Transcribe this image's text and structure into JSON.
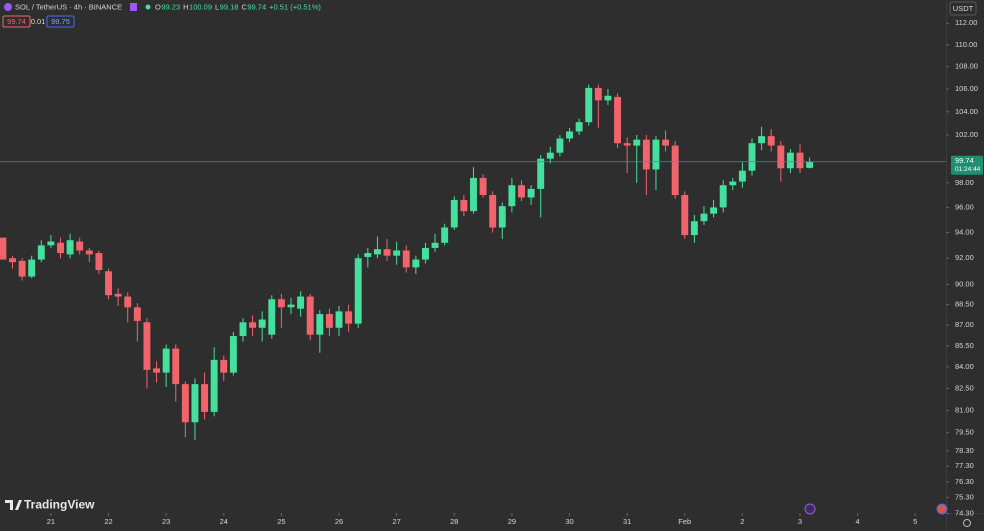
{
  "chart_data": {
    "type": "candlestick",
    "header": {
      "symbol": "SOL / TetherUS · 4h · BINANCE",
      "ohlc": [
        {
          "key": "O",
          "value": "99.23"
        },
        {
          "key": "H",
          "value": "100.09"
        },
        {
          "key": "L",
          "value": "99.18"
        },
        {
          "key": "C",
          "value": "99.74"
        }
      ],
      "change": "+0.51 (+0.51%)",
      "bid": "99.74",
      "spread": "0.01",
      "ask": "99.75"
    },
    "currency": "USDT",
    "logo": "TradingView",
    "last_price": {
      "value": 99.74,
      "label": "99.74"
    },
    "countdown": "01:24:44",
    "open": [
      93.6,
      92.0,
      91.8,
      90.6,
      91.9,
      93.0,
      93.2,
      92.3,
      93.3,
      92.6,
      92.4,
      91.0,
      89.3,
      89.1,
      88.3,
      87.2,
      83.9,
      83.6,
      85.3,
      82.8,
      80.2,
      82.8,
      80.9,
      84.5,
      83.6,
      86.2,
      87.2,
      86.8,
      86.3,
      88.9,
      88.3,
      88.2,
      89.1,
      86.3,
      87.8,
      86.8,
      88.0,
      87.1,
      92.1,
      92.3,
      92.7,
      92.2,
      92.6,
      91.3,
      91.9,
      92.8,
      93.2,
      94.4,
      96.6,
      95.7,
      98.4,
      97.0,
      94.4,
      96.1,
      97.8,
      96.8,
      97.5,
      100.0,
      100.5,
      101.7,
      102.3,
      103.1,
      106.1,
      105.0,
      105.3,
      101.3,
      101.1,
      101.6,
      99.1,
      101.6,
      101.1,
      97.0,
      93.8,
      94.9,
      95.5,
      96.0,
      97.8,
      98.1,
      99.0,
      101.3,
      101.9,
      101.1,
      99.2,
      100.5,
      99.23
    ],
    "high": [
      93.6,
      92.2,
      92.0,
      92.2,
      93.4,
      93.8,
      93.6,
      93.9,
      93.6,
      92.8,
      92.6,
      91.2,
      89.7,
      89.4,
      88.6,
      87.5,
      84.4,
      85.6,
      85.6,
      83.0,
      83.2,
      83.6,
      85.4,
      84.8,
      86.5,
      87.5,
      87.7,
      88.0,
      89.2,
      89.3,
      89.0,
      89.5,
      89.3,
      88.1,
      88.2,
      88.4,
      88.5,
      92.3,
      92.8,
      93.7,
      93.5,
      93.3,
      93.0,
      92.2,
      93.2,
      93.9,
      94.7,
      96.9,
      97.0,
      99.3,
      98.7,
      97.3,
      96.4,
      98.4,
      98.2,
      97.8,
      100.3,
      101.0,
      102.0,
      102.6,
      103.4,
      106.4,
      106.4,
      106.0,
      105.6,
      101.8,
      102.0,
      102.0,
      101.9,
      102.4,
      101.5,
      97.3,
      95.4,
      96.1,
      96.6,
      98.2,
      98.4,
      99.7,
      101.7,
      102.7,
      102.5,
      101.5,
      100.8,
      101.2,
      100.09
    ],
    "low": [
      92.0,
      91.2,
      90.3,
      90.5,
      91.7,
      92.8,
      92.0,
      92.0,
      92.3,
      91.7,
      90.8,
      88.9,
      88.4,
      87.2,
      85.8,
      82.5,
      82.9,
      82.6,
      81.6,
      79.2,
      79.0,
      80.4,
      80.6,
      83.0,
      83.4,
      85.8,
      86.2,
      85.8,
      86.0,
      86.8,
      87.8,
      87.6,
      85.9,
      85.0,
      86.2,
      86.2,
      86.5,
      86.8,
      91.3,
      92.0,
      91.8,
      91.5,
      90.9,
      90.8,
      91.6,
      92.5,
      93.0,
      94.2,
      95.3,
      95.5,
      96.8,
      94.0,
      93.5,
      95.6,
      96.5,
      96.2,
      95.2,
      99.6,
      100.2,
      101.4,
      102.0,
      102.8,
      102.6,
      104.6,
      100.9,
      98.8,
      98.0,
      97.0,
      97.4,
      100.6,
      96.7,
      93.5,
      93.2,
      94.6,
      95.2,
      95.6,
      97.4,
      97.6,
      98.6,
      100.7,
      100.6,
      98.1,
      98.8,
      98.8,
      99.18
    ],
    "close": [
      91.9,
      91.7,
      90.6,
      91.9,
      93.0,
      93.3,
      92.4,
      93.4,
      92.6,
      92.3,
      91.1,
      89.2,
      89.1,
      88.3,
      87.3,
      83.8,
      83.6,
      85.3,
      82.8,
      80.2,
      82.8,
      80.9,
      84.5,
      83.6,
      86.2,
      87.2,
      86.8,
      87.4,
      88.9,
      88.3,
      88.5,
      89.1,
      86.3,
      87.8,
      86.8,
      88.0,
      87.1,
      92.0,
      92.4,
      92.7,
      92.2,
      92.6,
      91.3,
      91.9,
      92.8,
      93.2,
      94.4,
      96.6,
      95.7,
      98.4,
      97.0,
      94.4,
      96.1,
      97.8,
      96.8,
      97.5,
      100.0,
      100.5,
      101.7,
      102.3,
      103.1,
      106.1,
      105.0,
      105.4,
      101.3,
      101.1,
      101.6,
      99.1,
      101.6,
      101.1,
      97.0,
      93.8,
      94.9,
      95.5,
      96.0,
      97.8,
      98.1,
      99.0,
      101.3,
      101.9,
      101.1,
      99.2,
      100.5,
      99.2,
      99.74
    ],
    "up_color": "#45e09d",
    "down_color": "#f2646c",
    "log_scale": true,
    "grid": false,
    "xlim": [
      -0.3,
      98.2
    ],
    "xticks": [
      {
        "value": 5,
        "label": "21"
      },
      {
        "value": 11,
        "label": "22"
      },
      {
        "value": 17,
        "label": "23"
      },
      {
        "value": 23,
        "label": "24"
      },
      {
        "value": 29,
        "label": "25"
      },
      {
        "value": 35,
        "label": "26"
      },
      {
        "value": 41,
        "label": "27"
      },
      {
        "value": 47,
        "label": "28"
      },
      {
        "value": 53,
        "label": "29"
      },
      {
        "value": 59,
        "label": "30"
      },
      {
        "value": 65,
        "label": "31"
      },
      {
        "value": 71,
        "label": "Feb"
      },
      {
        "value": 77,
        "label": "2"
      },
      {
        "value": 83,
        "label": "3"
      },
      {
        "value": 89,
        "label": "4"
      },
      {
        "value": 95,
        "label": "5"
      }
    ],
    "ylim": [
      73.9,
      114.2
    ],
    "yticks": [
      {
        "value": 112,
        "label": "112.00"
      },
      {
        "value": 110,
        "label": "110.00"
      },
      {
        "value": 108,
        "label": "108.00"
      },
      {
        "value": 106,
        "label": "106.00"
      },
      {
        "value": 104,
        "label": "104.00"
      },
      {
        "value": 102,
        "label": "102.00"
      },
      {
        "value": 98,
        "label": "98.00"
      },
      {
        "value": 96,
        "label": "96.00"
      },
      {
        "value": 94,
        "label": "94.00"
      },
      {
        "value": 92,
        "label": "92.00"
      },
      {
        "value": 90,
        "label": "90.00"
      },
      {
        "value": 88.5,
        "label": "88.50"
      },
      {
        "value": 87,
        "label": "87.00"
      },
      {
        "value": 85.5,
        "label": "85.50"
      },
      {
        "value": 84,
        "label": "84.00"
      },
      {
        "value": 82.5,
        "label": "82.50"
      },
      {
        "value": 81,
        "label": "81.00"
      },
      {
        "value": 79.5,
        "label": "79.50"
      },
      {
        "value": 78.3,
        "label": "78.30"
      },
      {
        "value": 77.3,
        "label": "77.30"
      },
      {
        "value": 76.3,
        "label": "76.30"
      },
      {
        "value": 75.3,
        "label": "75.30"
      },
      {
        "value": 74.3,
        "label": "74.30"
      }
    ]
  }
}
